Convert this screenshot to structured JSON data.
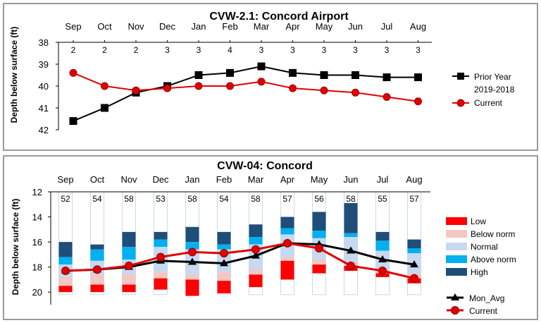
{
  "charts": [
    {
      "type": "line",
      "title": "CVW-2.1: Concord Airport",
      "ylabel": "Depth below surface (ft)",
      "categories": [
        "Sep",
        "Oct",
        "Nov",
        "Dec",
        "Jan",
        "Feb",
        "Mar",
        "Apr",
        "May",
        "Jun",
        "Jul",
        "Aug"
      ],
      "yticks": [
        "38",
        "39",
        "40",
        "41",
        "42"
      ],
      "ylim": [
        38,
        42
      ],
      "y_inverted": true,
      "counts": [
        "2",
        "2",
        "2",
        "3",
        "3",
        "4",
        "3",
        "3",
        "3",
        "3",
        "3",
        "3"
      ],
      "series": [
        {
          "name": "Prior Year 2019-2018",
          "name_line1": "Prior Year",
          "name_line2": "2019-2018",
          "color": "#000000",
          "marker": "square",
          "values": [
            41.6,
            41.0,
            40.3,
            40.0,
            39.5,
            39.4,
            39.1,
            39.4,
            39.5,
            39.5,
            39.6,
            39.6
          ]
        },
        {
          "name": "Current",
          "color": "#e00000",
          "marker": "circle",
          "values": [
            39.4,
            40.0,
            40.2,
            40.1,
            40.0,
            40.0,
            39.8,
            40.1,
            40.2,
            40.3,
            40.5,
            40.7
          ]
        }
      ],
      "grid": false,
      "legend": "right"
    },
    {
      "type": "bar",
      "title": "CVW-04: Concord",
      "ylabel": "Depth below surface (ft)",
      "categories": [
        "Sep",
        "Oct",
        "Nov",
        "Dec",
        "Jan",
        "Feb",
        "Mar",
        "Apr",
        "May",
        "Jun",
        "Jul",
        "Aug"
      ],
      "yticks": [
        "12",
        "14",
        "16",
        "18",
        "20"
      ],
      "ylim": [
        12,
        21
      ],
      "y_inverted": true,
      "counts": [
        "52",
        "54",
        "58",
        "53",
        "58",
        "54",
        "58",
        "57",
        "56",
        "58",
        "55",
        "57"
      ],
      "percentile_bands": [
        {
          "name": "High",
          "color": "#1f4e79"
        },
        {
          "name": "Above norm",
          "color": "#00b0f0"
        },
        {
          "name": "Normal",
          "color": "#c6d9f1"
        },
        {
          "name": "Below norm",
          "color": "#f4c7c3"
        },
        {
          "name": "Low",
          "color": "#ff0000"
        }
      ],
      "band_boundaries": [
        [
          16.0,
          17.2,
          17.8,
          18.8,
          19.5,
          20.0
        ],
        [
          16.2,
          16.6,
          17.5,
          18.6,
          19.4,
          20.0
        ],
        [
          15.2,
          16.4,
          17.4,
          18.6,
          19.4,
          20.0
        ],
        [
          15.2,
          15.8,
          16.4,
          18.4,
          18.9,
          19.8
        ],
        [
          14.8,
          16.0,
          16.6,
          18.6,
          19.0,
          20.3
        ],
        [
          15.2,
          16.2,
          16.6,
          18.4,
          19.1,
          20.1
        ],
        [
          14.6,
          15.6,
          16.2,
          18.2,
          18.6,
          19.6
        ],
        [
          14.0,
          14.9,
          15.4,
          17.2,
          17.5,
          19.0
        ],
        [
          13.6,
          15.1,
          15.7,
          17.4,
          17.8,
          18.5
        ],
        [
          12.9,
          15.3,
          15.6,
          17.6,
          17.9,
          18.3
        ],
        [
          15.2,
          15.9,
          16.7,
          18.2,
          18.5,
          18.8
        ],
        [
          15.8,
          16.5,
          16.9,
          18.5,
          18.9,
          19.3
        ]
      ],
      "series": [
        {
          "name": "Mon_Avg",
          "color": "#000000",
          "marker": "triangle",
          "values": [
            18.3,
            18.2,
            18.0,
            17.5,
            17.6,
            17.7,
            17.1,
            16.1,
            16.2,
            16.7,
            17.4,
            17.8
          ]
        },
        {
          "name": "Current",
          "color": "#e00000",
          "marker": "circle",
          "values": [
            18.3,
            18.2,
            17.9,
            17.2,
            16.8,
            16.9,
            16.6,
            16.1,
            16.5,
            17.9,
            18.3,
            18.9
          ]
        }
      ],
      "grid": false,
      "legend": "right"
    }
  ]
}
